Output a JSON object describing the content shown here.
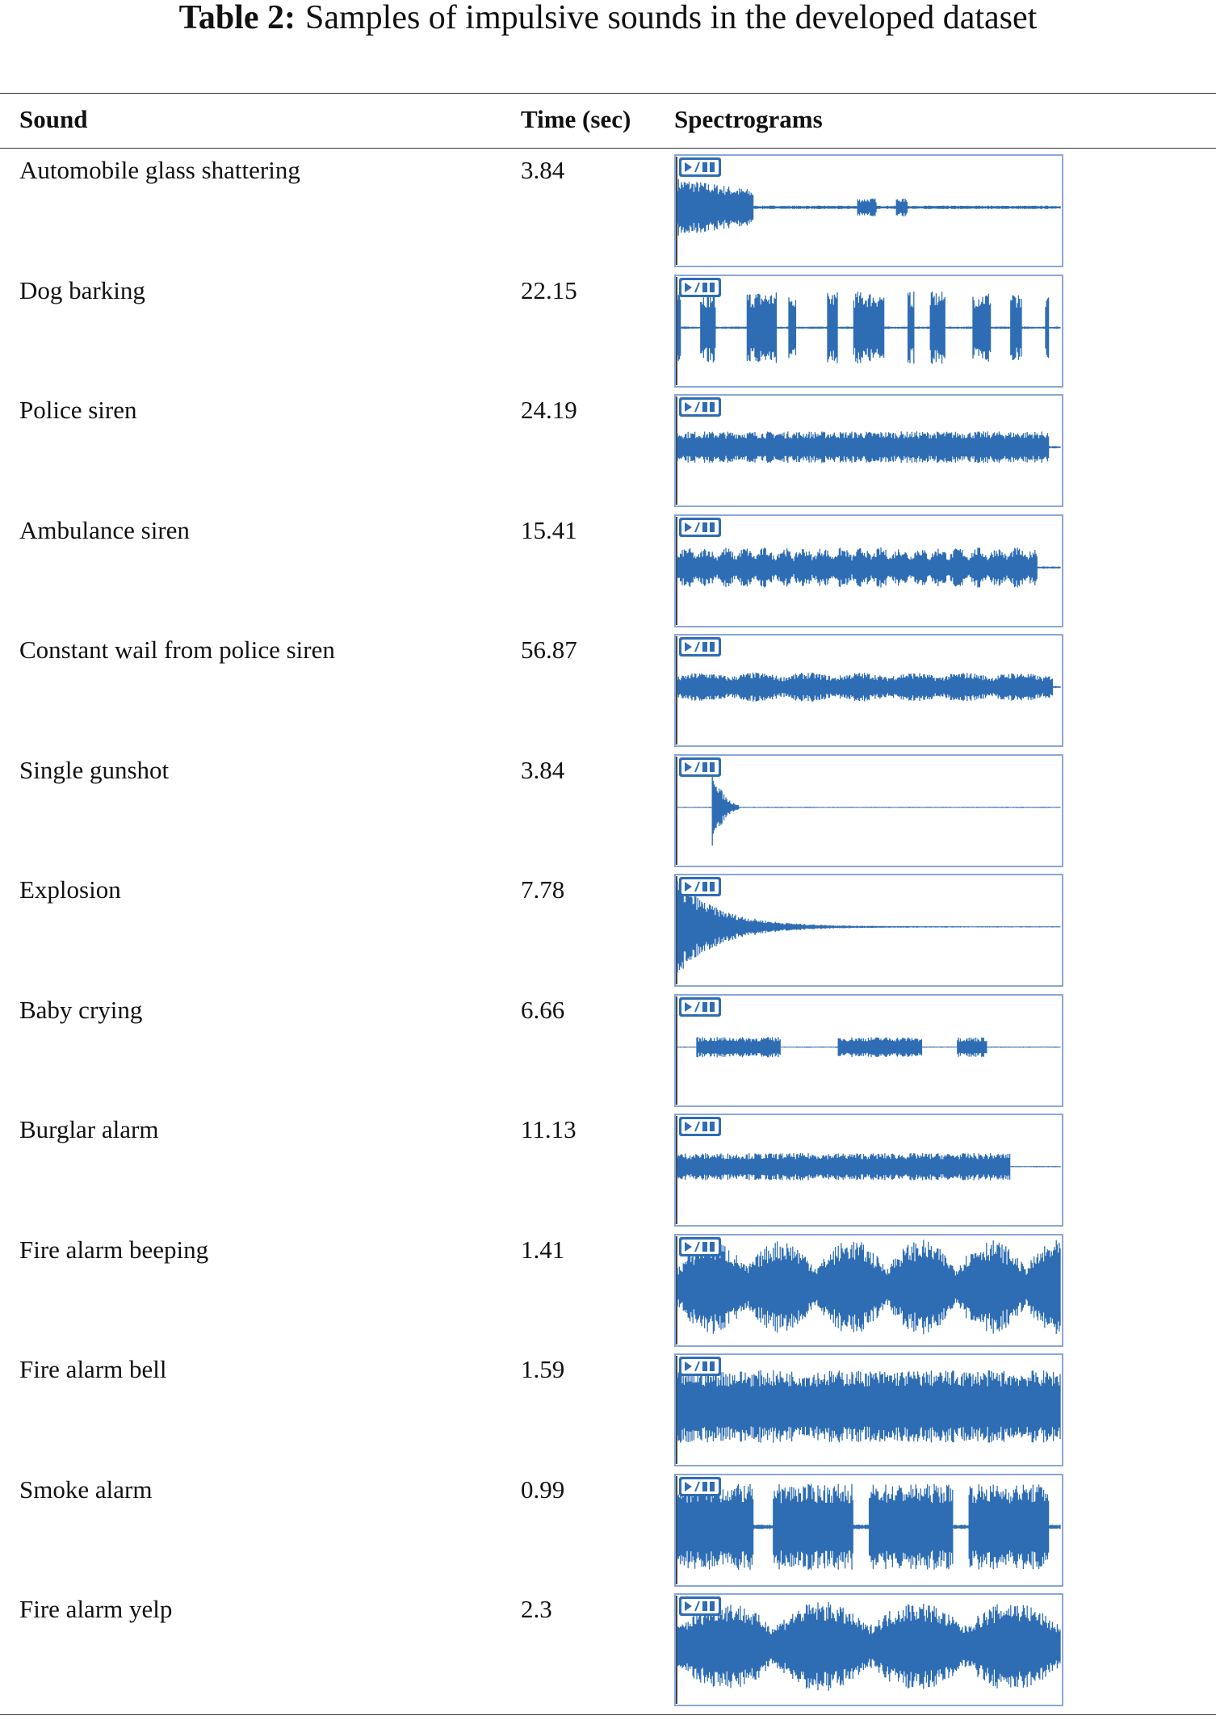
{
  "title": {
    "label": "Table 2:",
    "text": "Samples of impulsive sounds in the developed dataset"
  },
  "table": {
    "headers": [
      "Sound",
      "Time (sec)",
      "Spectrograms"
    ],
    "rows": [
      [
        "Automobile glass shattering",
        "3.84"
      ],
      [
        "Dog barking",
        "22.15"
      ],
      [
        "Police siren",
        "24.19"
      ],
      [
        "Ambulance siren",
        "15.41"
      ],
      [
        "Constant wail from police siren",
        "56.87"
      ],
      [
        "Single gunshot",
        "3.84"
      ],
      [
        "Explosion",
        "7.78"
      ],
      [
        "Baby crying",
        "6.66"
      ],
      [
        "Burglar alarm",
        "11.13"
      ],
      [
        "Fire alarm beeping",
        "1.41"
      ],
      [
        "Fire alarm bell",
        "1.59"
      ],
      [
        "Smoke alarm",
        "0.99"
      ],
      [
        "Fire alarm yelp",
        "2.3"
      ]
    ]
  }
}
